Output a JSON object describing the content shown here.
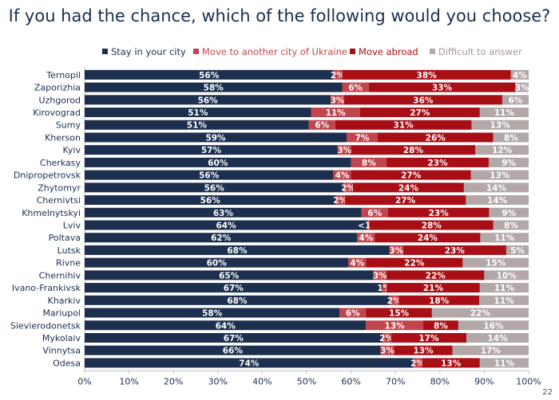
{
  "page_number": "22",
  "chart_data": {
    "type": "bar",
    "orientation": "horizontal",
    "stacked": "percent",
    "title": "If you had the chance, which of the following would you choose?",
    "xlim": [
      0,
      100
    ],
    "xticks": [
      "0%",
      "10%",
      "20%",
      "30%",
      "40%",
      "50%",
      "60%",
      "70%",
      "80%",
      "90%",
      "100%"
    ],
    "legend_position": "top",
    "categories": [
      "Ternopil",
      "Zaporizhia",
      "Uzhgorod",
      "Kirovograd",
      "Sumy",
      "Kherson",
      "Kyiv",
      "Cherkasy",
      "Dnipropetrovsk",
      "Zhytomyr",
      "Chernivtsi",
      "Khmelnytskyi",
      "Lviv",
      "Poltava",
      "Lutsk",
      "Rivne",
      "Chernihiv",
      "Ivano-Frankivsk",
      "Kharkiv",
      "Mariupol",
      "Sievierodonetsk",
      "Mykolaiv",
      "Vinnytsa",
      "Odesa"
    ],
    "series": [
      {
        "name": "Stay in your city",
        "color": "#1c2f4e",
        "label_color": "#ffffff",
        "values": [
          56,
          58,
          56,
          51,
          51,
          59,
          57,
          60,
          56,
          56,
          56,
          63,
          64,
          62,
          68,
          60,
          65,
          67,
          68,
          58,
          64,
          67,
          66,
          74
        ],
        "labels": [
          "56%",
          "58%",
          "56%",
          "51%",
          "51%",
          "59%",
          "57%",
          "60%",
          "56%",
          "56%",
          "56%",
          "63%",
          "64%",
          "62%",
          "68%",
          "60%",
          "65%",
          "67%",
          "68%",
          "58%",
          "64%",
          "67%",
          "66%",
          "74%"
        ]
      },
      {
        "name": "Move to another city of Ukraine",
        "color": "#c0454d",
        "label_color": "#ffffff",
        "values": [
          2,
          6,
          3,
          11,
          6,
          7,
          3,
          8,
          4,
          2,
          2,
          6,
          0.5,
          4,
          3,
          4,
          3,
          1,
          2,
          6,
          13,
          2,
          3,
          2
        ],
        "labels": [
          "2%",
          "6%",
          "3%",
          "11%",
          "6%",
          "7%",
          "3%",
          "8%",
          "4%",
          "2%",
          "2%",
          "6%",
          "<1%",
          "4%",
          "3%",
          "4%",
          "3%",
          "1%",
          "2%",
          "6%",
          "13%",
          "2%",
          "3%",
          "2%"
        ]
      },
      {
        "name": "Move abroad",
        "color": "#a80e15",
        "label_color": "#ffffff",
        "values": [
          38,
          33,
          36,
          27,
          31,
          26,
          28,
          23,
          27,
          24,
          27,
          23,
          28,
          24,
          23,
          22,
          22,
          21,
          18,
          15,
          8,
          17,
          13,
          13
        ],
        "labels": [
          "38%",
          "33%",
          "36%",
          "27%",
          "31%",
          "26%",
          "28%",
          "23%",
          "27%",
          "24%",
          "27%",
          "23%",
          "28%",
          "24%",
          "23%",
          "22%",
          "22%",
          "21%",
          "18%",
          "15%",
          "8%",
          "17%",
          "13%",
          "13%"
        ]
      },
      {
        "name": "Difficult to answer",
        "color": "#b3a7a8",
        "label_color": "#ffffff",
        "values": [
          4,
          3,
          6,
          11,
          13,
          8,
          12,
          9,
          13,
          14,
          14,
          9,
          8,
          11,
          5,
          15,
          10,
          11,
          11,
          22,
          16,
          14,
          17,
          11
        ],
        "labels": [
          "4%",
          "3%",
          "6%",
          "11%",
          "13%",
          "8%",
          "12%",
          "9%",
          "13%",
          "14%",
          "14%",
          "9%",
          "8%",
          "11%",
          "5%",
          "15%",
          "10%",
          "11%",
          "11%",
          "22%",
          "16%",
          "14%",
          "17%",
          "11%"
        ]
      }
    ]
  }
}
